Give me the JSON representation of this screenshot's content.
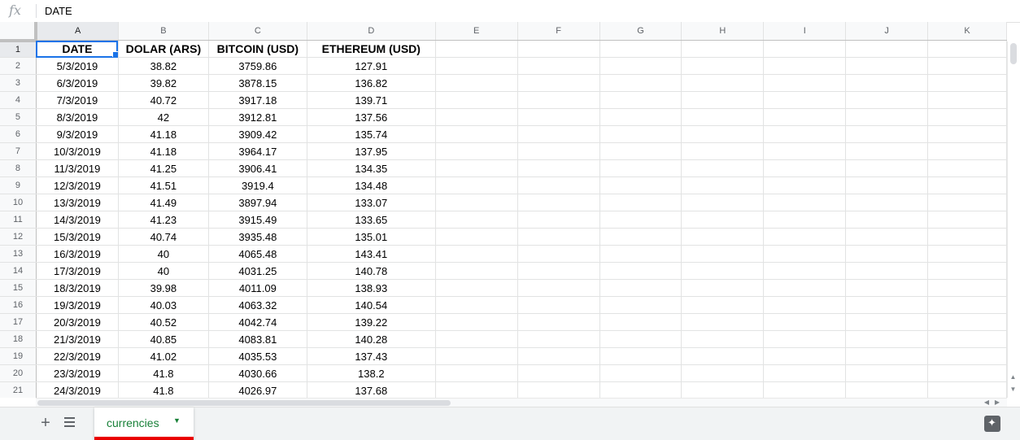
{
  "formula_bar": {
    "fx_label": "fx",
    "value": "DATE"
  },
  "columns": [
    "A",
    "B",
    "C",
    "D",
    "E",
    "F",
    "G",
    "H",
    "I",
    "J",
    "K"
  ],
  "rows": [
    [
      "DATE",
      "DOLAR (ARS)",
      "BITCOIN (USD)",
      "ETHEREUM (USD)"
    ],
    [
      "5/3/2019",
      "38.82",
      "3759.86",
      "127.91"
    ],
    [
      "6/3/2019",
      "39.82",
      "3878.15",
      "136.82"
    ],
    [
      "7/3/2019",
      "40.72",
      "3917.18",
      "139.71"
    ],
    [
      "8/3/2019",
      "42",
      "3912.81",
      "137.56"
    ],
    [
      "9/3/2019",
      "41.18",
      "3909.42",
      "135.74"
    ],
    [
      "10/3/2019",
      "41.18",
      "3964.17",
      "137.95"
    ],
    [
      "11/3/2019",
      "41.25",
      "3906.41",
      "134.35"
    ],
    [
      "12/3/2019",
      "41.51",
      "3919.4",
      "134.48"
    ],
    [
      "13/3/2019",
      "41.49",
      "3897.94",
      "133.07"
    ],
    [
      "14/3/2019",
      "41.23",
      "3915.49",
      "133.65"
    ],
    [
      "15/3/2019",
      "40.74",
      "3935.48",
      "135.01"
    ],
    [
      "16/3/2019",
      "40",
      "4065.48",
      "143.41"
    ],
    [
      "17/3/2019",
      "40",
      "4031.25",
      "140.78"
    ],
    [
      "18/3/2019",
      "39.98",
      "4011.09",
      "138.93"
    ],
    [
      "19/3/2019",
      "40.03",
      "4063.32",
      "140.54"
    ],
    [
      "20/3/2019",
      "40.52",
      "4042.74",
      "139.22"
    ],
    [
      "21/3/2019",
      "40.85",
      "4083.81",
      "140.28"
    ],
    [
      "22/3/2019",
      "41.02",
      "4035.53",
      "137.43"
    ],
    [
      "23/3/2019",
      "41.8",
      "4030.66",
      "138.2"
    ],
    [
      "24/3/2019",
      "41.8",
      "4026.97",
      "137.68"
    ]
  ],
  "active_cell": "A1",
  "sheet_tab": {
    "label": "currencies",
    "color": "#188038",
    "underline_color": "#ea0000"
  },
  "icons": {
    "add_sheet": "plus-icon",
    "all_sheets": "list-icon",
    "tab_menu": "dropdown-arrow-icon",
    "explore": "explore-icon"
  },
  "glyphs": {
    "add": "+",
    "dropdown": "▼",
    "explore": "✦",
    "up": "▲",
    "down": "▼",
    "left": "◀",
    "right": "▶"
  }
}
